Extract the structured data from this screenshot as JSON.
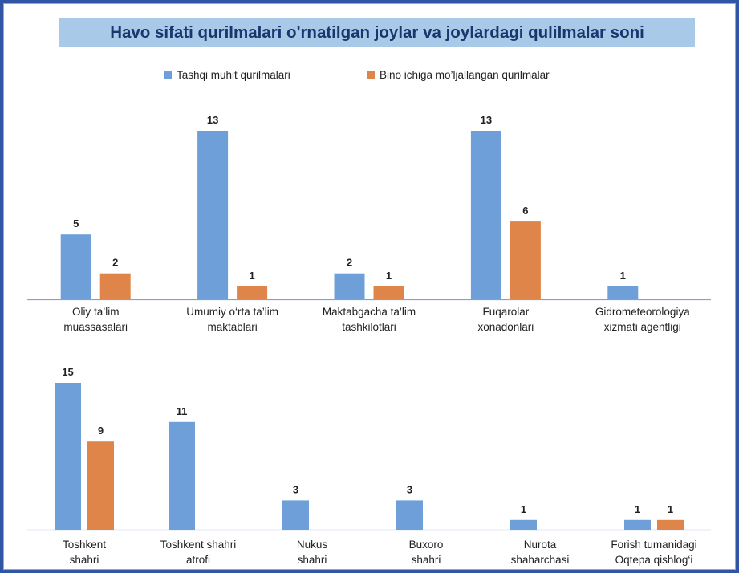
{
  "title": "Havo sifati qurilmalari o'rnatilgan joylar va joylardagi qulilmalar soni",
  "colors": {
    "outdoor": "#6f9fd8",
    "indoor": "#df8549",
    "title_bg": "#a9c9e8",
    "frame": "#2f55a4",
    "axis": "#7fa3d6"
  },
  "chart_data": [
    {
      "type": "bar",
      "title": "",
      "xlabel": "",
      "ylabel": "",
      "ylim": [
        0,
        13
      ],
      "grid": false,
      "legend_position": "top",
      "categories": [
        [
          "Oliy ta’lim",
          "muassasalari"
        ],
        [
          "Umumiy o‘rta ta’lim",
          "maktablari"
        ],
        [
          "Maktabgacha ta’lim",
          "tashkilotlari"
        ],
        [
          "Fuqarolar",
          "xonadonlari"
        ],
        [
          "Gidrometeorologiya",
          "xizmati agentligi"
        ]
      ],
      "series": [
        {
          "name": "Tashqi muhit qurilmalari",
          "values": [
            5,
            13,
            2,
            13,
            1
          ]
        },
        {
          "name": "Bino ichiga mo’ljallangan qurilmalar",
          "values": [
            2,
            1,
            1,
            6,
            null
          ]
        }
      ]
    },
    {
      "type": "bar",
      "title": "",
      "xlabel": "",
      "ylabel": "",
      "ylim": [
        0,
        15
      ],
      "grid": false,
      "legend_position": "none",
      "categories": [
        [
          "Toshkent",
          "shahri"
        ],
        [
          "Toshkent shahri",
          "atrofi"
        ],
        [
          "Nukus",
          "shahri"
        ],
        [
          "Buxoro",
          "shahri"
        ],
        [
          "Nurota",
          "shaharchasi"
        ],
        [
          "Forish tumanidagi",
          "Oqtepa qishlog‘i"
        ]
      ],
      "series": [
        {
          "name": "Tashqi muhit qurilmalari",
          "values": [
            15,
            11,
            3,
            3,
            1,
            1
          ]
        },
        {
          "name": "Bino ichiga mo’ljallangan qurilmalar",
          "values": [
            9,
            null,
            null,
            null,
            null,
            1
          ]
        }
      ]
    }
  ]
}
